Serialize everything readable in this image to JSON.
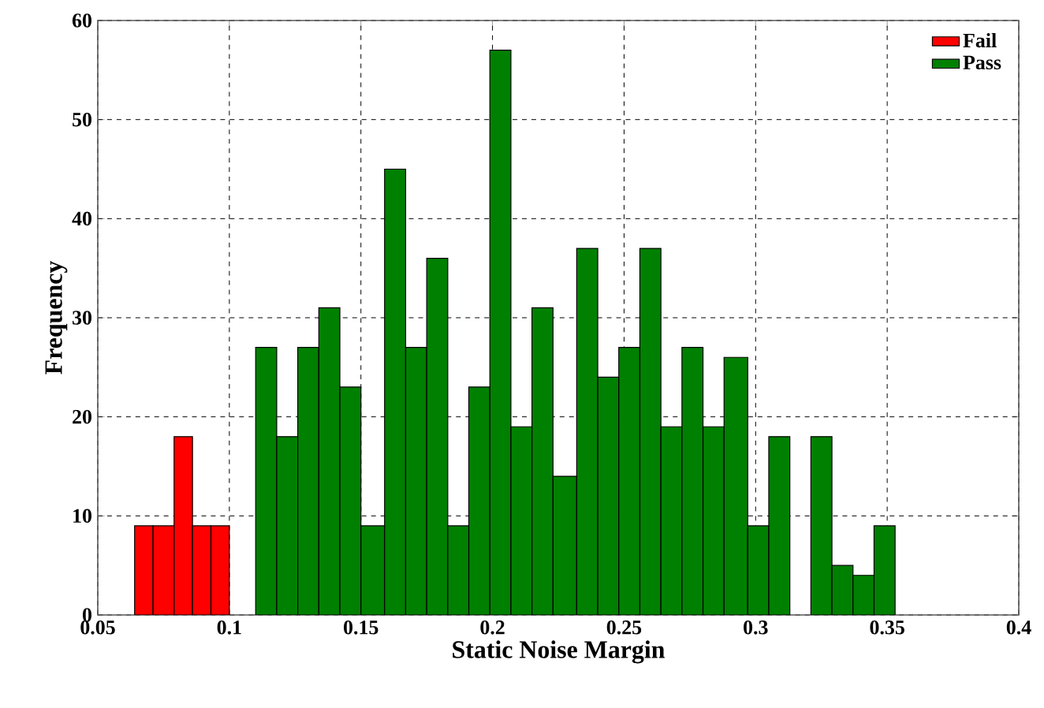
{
  "chart_data": {
    "type": "histogram",
    "xlabel": "Static Noise Margin",
    "ylabel": "Frequency",
    "bins": [
      0.064,
      0.071,
      0.079,
      0.086,
      0.093,
      0.1,
      0.11,
      0.118,
      0.126,
      0.134,
      0.142,
      0.15,
      0.159,
      0.167,
      0.175,
      0.183,
      0.191,
      0.199,
      0.207,
      0.215,
      0.223,
      0.232,
      0.24,
      0.248,
      0.256,
      0.264,
      0.272,
      0.28,
      0.288,
      0.297,
      0.305,
      0.313,
      0.321,
      0.329,
      0.337,
      0.345,
      0.353
    ],
    "series": [
      {
        "name": "Fail",
        "color": "#ff0000",
        "values": [
          9,
          9,
          18,
          9,
          9,
          null,
          null,
          null,
          null,
          null,
          null,
          null,
          null,
          null,
          null,
          null,
          null,
          null,
          null,
          null,
          null,
          null,
          null,
          null,
          null,
          null,
          null,
          null,
          null,
          null,
          null,
          null,
          null,
          null,
          null,
          null
        ]
      },
      {
        "name": "Pass",
        "color": "#008000",
        "values": [
          null,
          null,
          null,
          null,
          null,
          null,
          27,
          18,
          27,
          31,
          23,
          9,
          45,
          27,
          36,
          9,
          23,
          57,
          19,
          31,
          14,
          37,
          24,
          27,
          37,
          19,
          27,
          19,
          26,
          9,
          18,
          0,
          18,
          5,
          4,
          9
        ]
      }
    ],
    "xlim": [
      0.05,
      0.4
    ],
    "xticks": [
      0.05,
      0.1,
      0.15,
      0.2,
      0.25,
      0.3,
      0.35,
      0.4
    ],
    "ylim": [
      0,
      60
    ],
    "yticks": [
      0,
      10,
      20,
      30,
      40,
      50,
      60
    ],
    "grid": true,
    "legend": "top right"
  }
}
